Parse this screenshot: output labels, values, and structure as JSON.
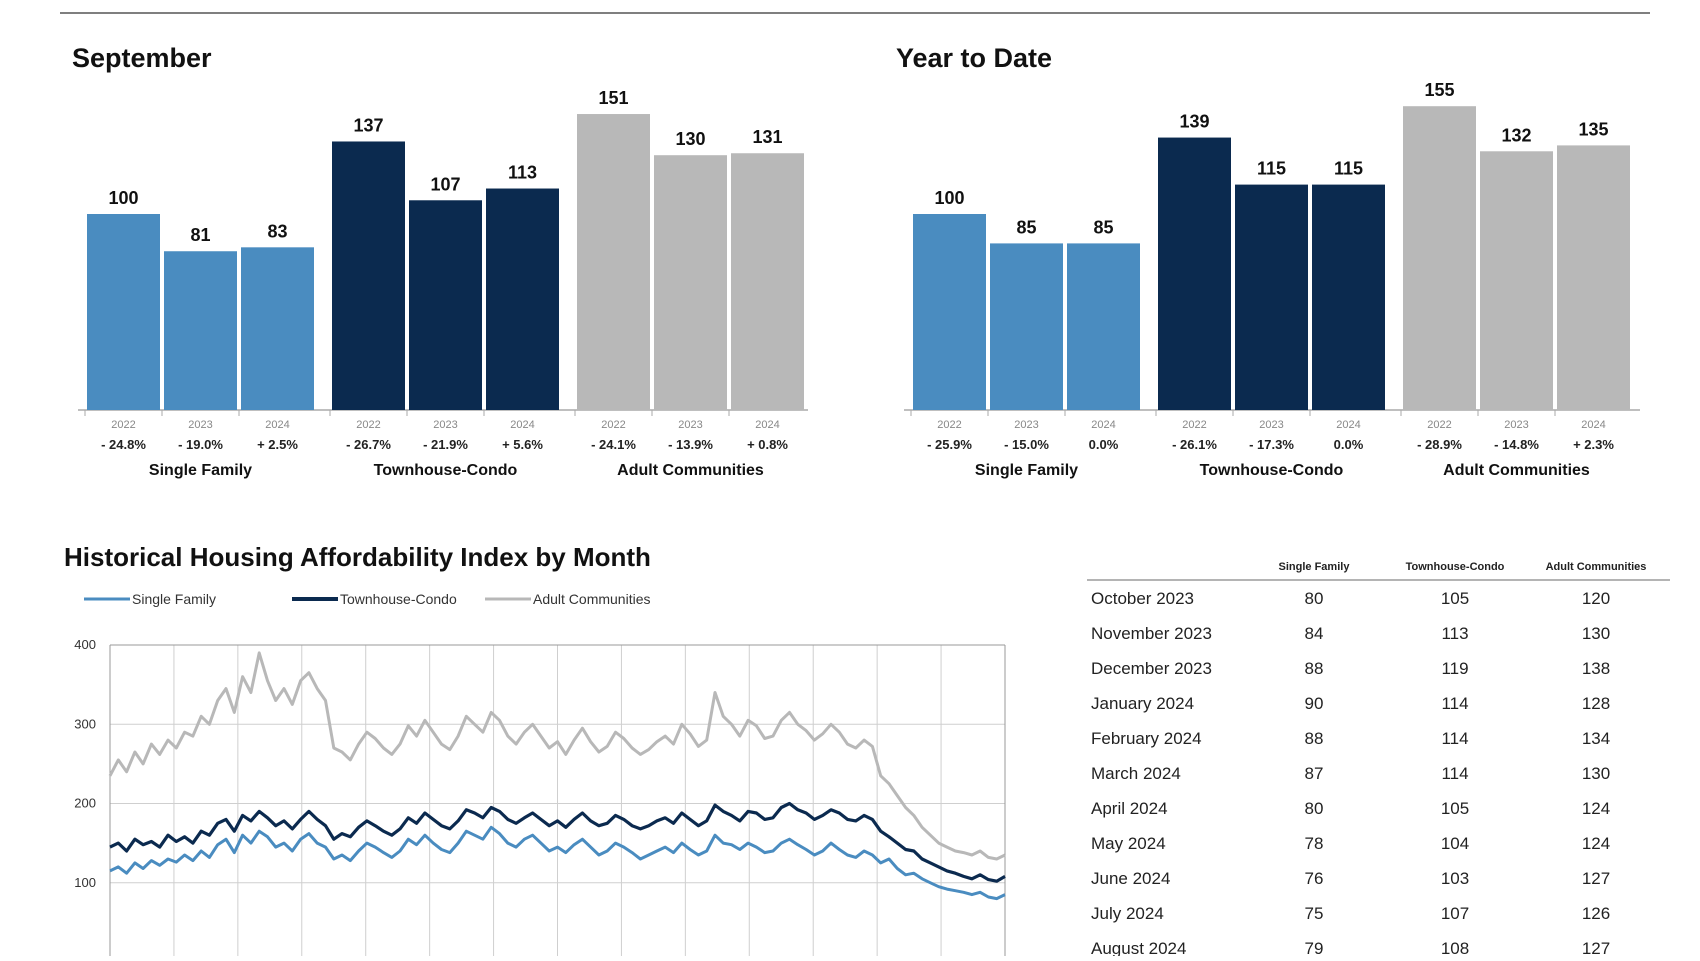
{
  "colors": {
    "single_family": "#4a8cc0",
    "townhouse_condo": "#0b2a4f",
    "adult_communities": "#b8b8b8"
  },
  "chart_data": [
    {
      "type": "bar",
      "title": "September",
      "groups": [
        {
          "name": "Single Family",
          "years": [
            "2022",
            "2023",
            "2024"
          ],
          "values": [
            100,
            81,
            83
          ],
          "changes": [
            "- 24.8%",
            "- 19.0%",
            "+ 2.5%"
          ]
        },
        {
          "name": "Townhouse-Condo",
          "years": [
            "2022",
            "2023",
            "2024"
          ],
          "values": [
            137,
            107,
            113
          ],
          "changes": [
            "- 26.7%",
            "- 21.9%",
            "+ 5.6%"
          ]
        },
        {
          "name": "Adult Communities",
          "years": [
            "2022",
            "2023",
            "2024"
          ],
          "values": [
            151,
            130,
            131
          ],
          "changes": [
            "- 24.1%",
            "- 13.9%",
            "+ 0.8%"
          ]
        }
      ],
      "ylim": [
        0,
        160
      ]
    },
    {
      "type": "bar",
      "title": "Year to Date",
      "groups": [
        {
          "name": "Single Family",
          "years": [
            "2022",
            "2023",
            "2024"
          ],
          "values": [
            100,
            85,
            85
          ],
          "changes": [
            "- 25.9%",
            "- 15.0%",
            "0.0%"
          ]
        },
        {
          "name": "Townhouse-Condo",
          "years": [
            "2022",
            "2023",
            "2024"
          ],
          "values": [
            139,
            115,
            115
          ],
          "changes": [
            "- 26.1%",
            "- 17.3%",
            "0.0%"
          ]
        },
        {
          "name": "Adult Communities",
          "years": [
            "2022",
            "2023",
            "2024"
          ],
          "values": [
            155,
            132,
            135
          ],
          "changes": [
            "- 28.9%",
            "- 14.8%",
            "+ 2.3%"
          ]
        }
      ],
      "ylim": [
        0,
        160
      ]
    },
    {
      "type": "line",
      "title": "Historical Housing Affordability Index by Month",
      "y_ticks": [
        "400",
        "300",
        "200",
        "100"
      ],
      "ylim": [
        0,
        400
      ],
      "legend": [
        "Single Family",
        "Townhouse-Condo",
        "Adult Communities"
      ],
      "series": [
        {
          "name": "Single Family",
          "values": [
            115,
            120,
            112,
            125,
            118,
            128,
            122,
            130,
            126,
            135,
            128,
            140,
            132,
            148,
            155,
            138,
            160,
            150,
            165,
            158,
            145,
            150,
            140,
            155,
            162,
            150,
            145,
            130,
            135,
            128,
            140,
            150,
            145,
            138,
            132,
            140,
            155,
            148,
            160,
            150,
            142,
            138,
            150,
            165,
            160,
            155,
            170,
            162,
            150,
            145,
            155,
            160,
            150,
            140,
            145,
            138,
            148,
            155,
            145,
            135,
            140,
            150,
            145,
            138,
            130,
            135,
            140,
            145,
            138,
            150,
            142,
            135,
            140,
            160,
            150,
            148,
            142,
            150,
            145,
            138,
            140,
            150,
            155,
            148,
            142,
            135,
            140,
            150,
            142,
            135,
            132,
            140,
            135,
            125,
            130,
            118,
            110,
            112,
            105,
            100,
            95,
            92,
            90,
            88,
            85,
            88,
            82,
            80,
            85
          ]
        },
        {
          "name": "Townhouse-Condo",
          "values": [
            145,
            150,
            140,
            155,
            148,
            152,
            145,
            160,
            152,
            158,
            150,
            165,
            160,
            175,
            180,
            165,
            185,
            178,
            190,
            182,
            172,
            178,
            168,
            180,
            190,
            180,
            172,
            155,
            162,
            158,
            170,
            178,
            172,
            165,
            160,
            168,
            182,
            175,
            188,
            180,
            172,
            168,
            178,
            192,
            188,
            182,
            195,
            190,
            180,
            175,
            182,
            188,
            180,
            172,
            178,
            170,
            180,
            188,
            178,
            172,
            175,
            185,
            180,
            172,
            168,
            172,
            178,
            182,
            175,
            188,
            180,
            172,
            178,
            198,
            190,
            185,
            178,
            190,
            188,
            180,
            182,
            195,
            200,
            192,
            188,
            180,
            185,
            192,
            188,
            180,
            178,
            185,
            180,
            165,
            158,
            150,
            142,
            140,
            130,
            125,
            120,
            115,
            112,
            108,
            105,
            110,
            104,
            102,
            108
          ]
        },
        {
          "name": "Adult Communities",
          "values": [
            235,
            255,
            240,
            265,
            250,
            275,
            262,
            280,
            270,
            290,
            285,
            310,
            300,
            330,
            345,
            315,
            360,
            340,
            390,
            355,
            330,
            345,
            325,
            355,
            365,
            345,
            330,
            270,
            265,
            255,
            275,
            290,
            282,
            270,
            262,
            275,
            298,
            285,
            305,
            290,
            275,
            268,
            285,
            310,
            300,
            290,
            315,
            305,
            285,
            275,
            290,
            300,
            285,
            270,
            278,
            262,
            280,
            295,
            278,
            265,
            272,
            290,
            282,
            270,
            262,
            268,
            278,
            285,
            275,
            300,
            288,
            272,
            280,
            340,
            310,
            300,
            285,
            305,
            298,
            282,
            285,
            305,
            315,
            300,
            292,
            280,
            288,
            300,
            290,
            275,
            270,
            280,
            272,
            235,
            225,
            210,
            195,
            185,
            170,
            160,
            150,
            145,
            140,
            138,
            135,
            140,
            132,
            130,
            135
          ]
        }
      ]
    }
  ],
  "table": {
    "headers": [
      "",
      "Single Family",
      "Townhouse-Condo",
      "Adult Communities"
    ],
    "rows": [
      {
        "month": "October 2023",
        "sf": "80",
        "tc": "105",
        "ac": "120"
      },
      {
        "month": "November 2023",
        "sf": "84",
        "tc": "113",
        "ac": "130"
      },
      {
        "month": "December 2023",
        "sf": "88",
        "tc": "119",
        "ac": "138"
      },
      {
        "month": "January 2024",
        "sf": "90",
        "tc": "114",
        "ac": "128"
      },
      {
        "month": "February 2024",
        "sf": "88",
        "tc": "114",
        "ac": "134"
      },
      {
        "month": "March 2024",
        "sf": "87",
        "tc": "114",
        "ac": "130"
      },
      {
        "month": "April 2024",
        "sf": "80",
        "tc": "105",
        "ac": "124"
      },
      {
        "month": "May 2024",
        "sf": "78",
        "tc": "104",
        "ac": "124"
      },
      {
        "month": "June 2024",
        "sf": "76",
        "tc": "103",
        "ac": "127"
      },
      {
        "month": "July 2024",
        "sf": "75",
        "tc": "107",
        "ac": "126"
      },
      {
        "month": "August 2024",
        "sf": "79",
        "tc": "108",
        "ac": "127"
      }
    ]
  }
}
